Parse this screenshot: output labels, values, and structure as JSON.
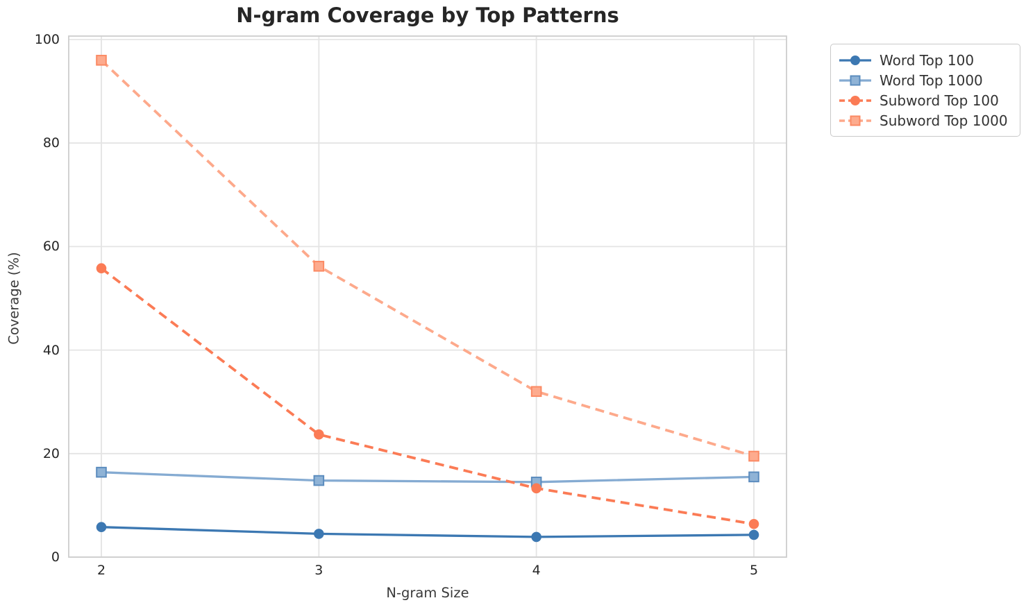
{
  "title": "N-gram Coverage by Top Patterns",
  "chart_data": {
    "type": "line",
    "title": "N-gram Coverage by Top Patterns",
    "xlabel": "N-gram Size",
    "ylabel": "Coverage (%)",
    "x": [
      2,
      3,
      4,
      5
    ],
    "xticks": [
      2,
      3,
      4,
      5
    ],
    "yticks": [
      0,
      20,
      40,
      60,
      80,
      100
    ],
    "xlim": [
      1.85,
      5.15
    ],
    "ylim": [
      0,
      100
    ],
    "grid": true,
    "legend_position": "upper-right-outside-axes",
    "series": [
      {
        "name": "Word Top 100",
        "values": [
          5.8,
          4.5,
          3.9,
          4.3
        ],
        "color": "#3c78b2",
        "marker": "circle",
        "marker_fill": "#3c78b2",
        "marker_edge": "#3c78b2",
        "line_style": "solid"
      },
      {
        "name": "Word Top 1000",
        "values": [
          16.4,
          14.8,
          14.5,
          15.5
        ],
        "color": "#85abd2",
        "marker": "square",
        "marker_fill": "#8fb3d6",
        "marker_edge": "#5b8cbe",
        "line_style": "solid"
      },
      {
        "name": "Subword Top 100",
        "values": [
          55.8,
          23.7,
          13.3,
          6.4
        ],
        "color": "#fb7b55",
        "marker": "circle",
        "marker_fill": "#fb7b55",
        "marker_edge": "#fb7b55",
        "line_style": "dashed"
      },
      {
        "name": "Subword Top 1000",
        "values": [
          96.0,
          56.2,
          32.0,
          19.5
        ],
        "color": "#fda98b",
        "marker": "square",
        "marker_fill": "#fdab8e",
        "marker_edge": "#fb8a64",
        "line_style": "dashed"
      }
    ]
  },
  "style": {
    "background": "#ffffff",
    "grid_color": "#e4e4e4",
    "spine_color": "#cdcdcd",
    "title_color": "#262626",
    "tick_color": "#262626",
    "axis_label_color": "#3a3a3a",
    "legend_border_color": "#c9c9c9",
    "legend_text_color": "#333333"
  }
}
